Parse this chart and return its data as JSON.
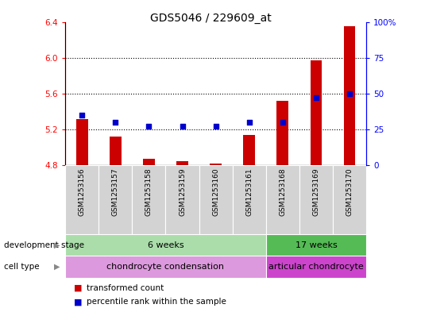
{
  "title": "GDS5046 / 229609_at",
  "samples": [
    "GSM1253156",
    "GSM1253157",
    "GSM1253158",
    "GSM1253159",
    "GSM1253160",
    "GSM1253161",
    "GSM1253168",
    "GSM1253169",
    "GSM1253170"
  ],
  "transformed_count": [
    5.32,
    5.12,
    4.87,
    4.85,
    4.82,
    5.14,
    5.52,
    5.97,
    6.35
  ],
  "percentile_rank": [
    35,
    30,
    27,
    27,
    27,
    30,
    30,
    47,
    50
  ],
  "bar_color": "#cc0000",
  "dot_color": "#0000cc",
  "bar_baseline": 4.8,
  "ylim_left": [
    4.8,
    6.4
  ],
  "ylim_right": [
    0,
    100
  ],
  "yticks_left": [
    4.8,
    5.2,
    5.6,
    6.0,
    6.4
  ],
  "yticks_right": [
    0,
    25,
    50,
    75,
    100
  ],
  "ytick_labels_right": [
    "0",
    "25",
    "50",
    "75",
    "100%"
  ],
  "grid_values": [
    5.2,
    5.6,
    6.0
  ],
  "dev_stage_groups": [
    {
      "label": "6 weeks",
      "start": 0,
      "end": 6,
      "color": "#aaddaa"
    },
    {
      "label": "17 weeks",
      "start": 6,
      "end": 9,
      "color": "#55bb55"
    }
  ],
  "cell_type_groups": [
    {
      "label": "chondrocyte condensation",
      "start": 0,
      "end": 6,
      "color": "#dd99dd"
    },
    {
      "label": "articular chondrocyte",
      "start": 6,
      "end": 9,
      "color": "#cc44cc"
    }
  ],
  "dev_stage_label": "development stage",
  "cell_type_label": "cell type",
  "legend_bar_label": "transformed count",
  "legend_dot_label": "percentile rank within the sample",
  "background_color": "#ffffff",
  "plot_bg_color": "#ffffff",
  "title_fontsize": 10,
  "tick_fontsize": 7.5,
  "label_fontsize": 7.5
}
